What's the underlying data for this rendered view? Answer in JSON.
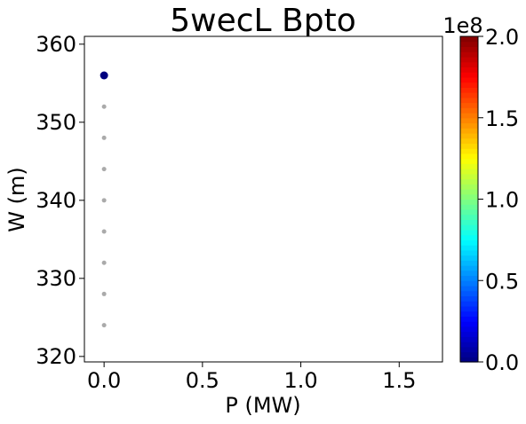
{
  "chart_data": {
    "type": "scatter",
    "title": "5wecL Bpto",
    "xlabel": "P (MW)",
    "ylabel": "W (m)",
    "xlim": [
      -0.1,
      1.72
    ],
    "ylim": [
      319.3,
      361
    ],
    "xticks": [
      0.0,
      0.5,
      1.0,
      1.5
    ],
    "xtick_labels": [
      "0.0",
      "0.5",
      "1.0",
      "1.5"
    ],
    "yticks": [
      320,
      330,
      340,
      350,
      360
    ],
    "ytick_labels": [
      "320",
      "330",
      "340",
      "350",
      "360"
    ],
    "grid": false,
    "series": [
      {
        "color": "#aaaaaa",
        "points": [
          {
            "x": 0.0,
            "y": 324
          },
          {
            "x": 0.0,
            "y": 328
          },
          {
            "x": 0.0,
            "y": 332
          },
          {
            "x": 0.0,
            "y": 336
          },
          {
            "x": 0.0,
            "y": 340
          },
          {
            "x": 0.0,
            "y": 344
          },
          {
            "x": 0.0,
            "y": 348
          },
          {
            "x": 0.0,
            "y": 352
          }
        ]
      },
      {
        "color": "#00007f",
        "points": [
          {
            "x": 0.0,
            "y": 356,
            "value": 0.0
          }
        ]
      }
    ],
    "colorbar": {
      "colormap": "jet",
      "min": 0.0,
      "max": 2.0,
      "multiplier_label": "1e8",
      "ticks": [
        0.0,
        0.5,
        1.0,
        1.5,
        2.0
      ],
      "tick_labels": [
        "0.0",
        "0.5",
        "1.0",
        "1.5",
        "2.0"
      ]
    }
  }
}
